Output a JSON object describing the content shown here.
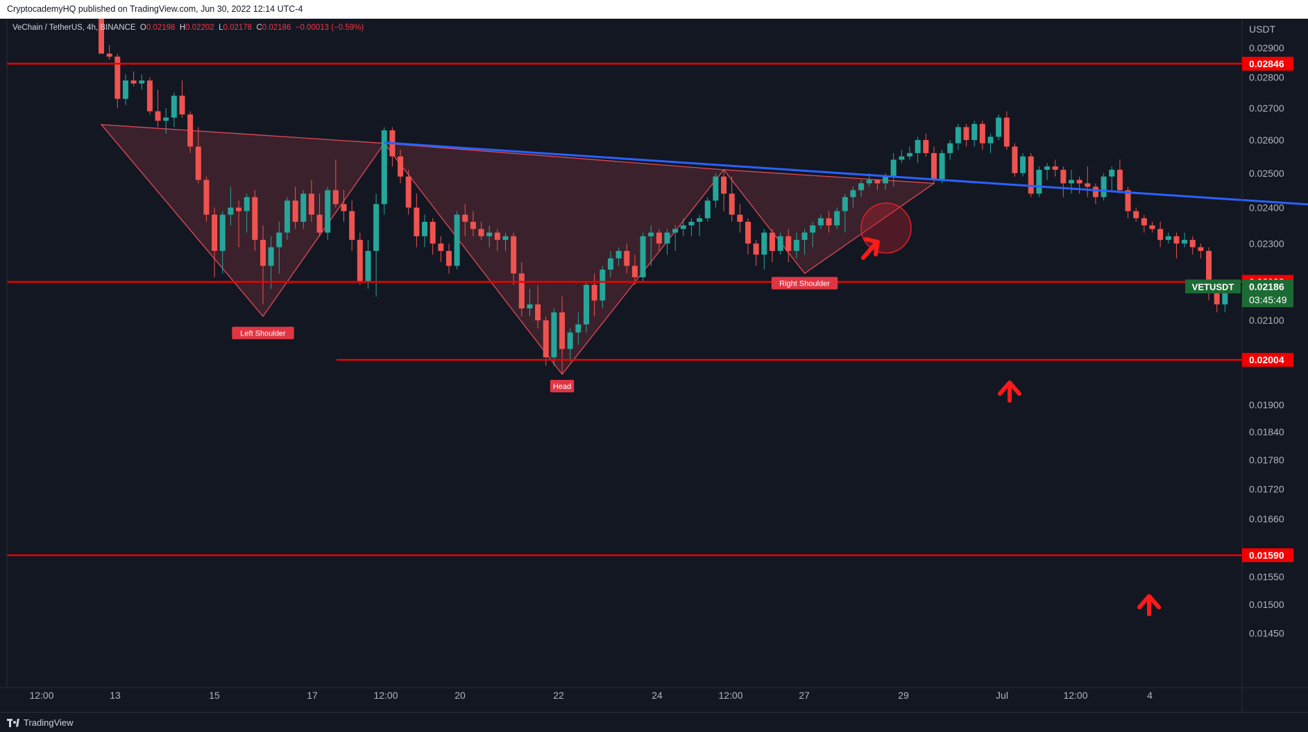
{
  "header": {
    "publisher_line": "CryptocademyHQ published on TradingView.com, Jun 30, 2022 12:14 UTC-4"
  },
  "legend": {
    "symbol": "VeChain / TetherUS, 4h, BINANCE",
    "open_key": "O",
    "open": "0.02198",
    "high_key": "H",
    "high": "0.02202",
    "low_key": "L",
    "low": "0.02178",
    "close_key": "C",
    "close": "0.02186",
    "change": "−0.00013 (−0.59%)"
  },
  "footer": {
    "brand": "TradingView"
  },
  "colors": {
    "background": "#131722",
    "up": "#26a69a",
    "down": "#ef5350",
    "level": "#f20000",
    "trendline": "#2962ff",
    "pattern_fill": "#5c2a33",
    "tag_green": "#1d6b34"
  },
  "chart_data": {
    "type": "candlestick",
    "symbol": "VETUSDT",
    "axis": {
      "currency": "USDT",
      "ylim": [
        0.0141,
        0.0303
      ],
      "scale": "log"
    },
    "price_ticks": [
      "0.02900",
      "0.02800",
      "0.02700",
      "0.02600",
      "0.02500",
      "0.02400",
      "0.02300",
      "0.02100",
      "0.01900",
      "0.01840",
      "0.01780",
      "0.01720",
      "0.01660",
      "0.01550",
      "0.01500",
      "0.01450"
    ],
    "x_ticks": [
      "12:00",
      "13",
      "15",
      "17",
      "12:00",
      "20",
      "22",
      "24",
      "12:00",
      "27",
      "29",
      "Jul",
      "12:00",
      "4"
    ],
    "horizontal_levels": [
      0.02846,
      0.02198,
      0.02004,
      0.0159
    ],
    "level_labels": [
      "0.02846",
      "0.02198",
      "0.02004",
      "0.01590"
    ],
    "last_price": {
      "symbol_tag": "VETUSDT",
      "price": "0.02186",
      "countdown": "03:45:49"
    },
    "pattern": {
      "name": "inverse head and shoulders",
      "labels": [
        "Left Shoulder",
        "Head",
        "Right Shoulder"
      ],
      "points": [
        {
          "bar": 0,
          "price": 0.02648
        },
        {
          "bar": 20,
          "price": 0.0211
        },
        {
          "bar": 35,
          "price": 0.0259
        },
        {
          "bar": 57,
          "price": 0.0197
        },
        {
          "bar": 77,
          "price": 0.0251
        },
        {
          "bar": 87,
          "price": 0.0222
        },
        {
          "bar": 103,
          "price": 0.0247
        }
      ]
    },
    "neckline": {
      "from": {
        "bar": 35,
        "price": 0.02592
      },
      "to": {
        "bar": 184,
        "price": 0.02356
      }
    },
    "candles": [
      [
        0.0305,
        0.0305,
        0.0288,
        0.0288
      ],
      [
        0.0288,
        0.0291,
        0.0286,
        0.0287
      ],
      [
        0.0287,
        0.0288,
        0.027,
        0.0273
      ],
      [
        0.0273,
        0.0281,
        0.0271,
        0.0279
      ],
      [
        0.0279,
        0.0282,
        0.0277,
        0.0278
      ],
      [
        0.0278,
        0.0281,
        0.0276,
        0.0279
      ],
      [
        0.0279,
        0.028,
        0.0268,
        0.0269
      ],
      [
        0.0269,
        0.0276,
        0.0264,
        0.0266
      ],
      [
        0.0266,
        0.027,
        0.0262,
        0.0267
      ],
      [
        0.0267,
        0.0275,
        0.0264,
        0.0274
      ],
      [
        0.0274,
        0.0279,
        0.0267,
        0.0268
      ],
      [
        0.0268,
        0.0269,
        0.0256,
        0.0258
      ],
      [
        0.0258,
        0.0264,
        0.0247,
        0.0248
      ],
      [
        0.0248,
        0.0249,
        0.0236,
        0.0238
      ],
      [
        0.0238,
        0.024,
        0.0221,
        0.0228
      ],
      [
        0.0228,
        0.0239,
        0.0222,
        0.0238
      ],
      [
        0.0238,
        0.0246,
        0.0235,
        0.024
      ],
      [
        0.024,
        0.0242,
        0.0229,
        0.0239
      ],
      [
        0.0239,
        0.0244,
        0.0233,
        0.0243
      ],
      [
        0.0243,
        0.0245,
        0.0228,
        0.0231
      ],
      [
        0.0231,
        0.0235,
        0.0214,
        0.0224
      ],
      [
        0.0224,
        0.0232,
        0.0218,
        0.0229
      ],
      [
        0.0229,
        0.0236,
        0.0222,
        0.0233
      ],
      [
        0.0233,
        0.0243,
        0.0231,
        0.0242
      ],
      [
        0.0242,
        0.0246,
        0.0234,
        0.0236
      ],
      [
        0.0236,
        0.0245,
        0.0234,
        0.0244
      ],
      [
        0.0244,
        0.0248,
        0.0236,
        0.0238
      ],
      [
        0.0238,
        0.0244,
        0.0232,
        0.0233
      ],
      [
        0.0233,
        0.0246,
        0.0231,
        0.0245
      ],
      [
        0.0245,
        0.0254,
        0.024,
        0.0241
      ],
      [
        0.0241,
        0.0245,
        0.0236,
        0.0239
      ],
      [
        0.0239,
        0.0242,
        0.0228,
        0.0231
      ],
      [
        0.0231,
        0.0233,
        0.0219,
        0.022
      ],
      [
        0.022,
        0.0231,
        0.0218,
        0.0228
      ],
      [
        0.0228,
        0.0244,
        0.0216,
        0.0241
      ],
      [
        0.0241,
        0.0264,
        0.0238,
        0.0263
      ],
      [
        0.0263,
        0.0264,
        0.0252,
        0.0255
      ],
      [
        0.0255,
        0.0257,
        0.0247,
        0.0249
      ],
      [
        0.0249,
        0.0251,
        0.0238,
        0.024
      ],
      [
        0.024,
        0.0244,
        0.0229,
        0.0232
      ],
      [
        0.0232,
        0.0238,
        0.0229,
        0.0236
      ],
      [
        0.0236,
        0.0237,
        0.0227,
        0.023
      ],
      [
        0.023,
        0.0232,
        0.0225,
        0.0228
      ],
      [
        0.0228,
        0.023,
        0.0222,
        0.0224
      ],
      [
        0.0224,
        0.0239,
        0.0223,
        0.0238
      ],
      [
        0.0238,
        0.0241,
        0.0232,
        0.0236
      ],
      [
        0.0236,
        0.0239,
        0.0232,
        0.0234
      ],
      [
        0.0234,
        0.0236,
        0.0231,
        0.0232
      ],
      [
        0.0232,
        0.0235,
        0.0229,
        0.0233
      ],
      [
        0.0233,
        0.0234,
        0.0228,
        0.0231
      ],
      [
        0.0231,
        0.0233,
        0.0228,
        0.0232
      ],
      [
        0.0232,
        0.0233,
        0.0219,
        0.0222
      ],
      [
        0.0222,
        0.0225,
        0.0211,
        0.0213
      ],
      [
        0.0213,
        0.0218,
        0.0211,
        0.0214
      ],
      [
        0.0214,
        0.0219,
        0.0208,
        0.021
      ],
      [
        0.021,
        0.0211,
        0.0199,
        0.0201
      ],
      [
        0.0201,
        0.0213,
        0.0199,
        0.0212
      ],
      [
        0.0212,
        0.0216,
        0.0197,
        0.0203
      ],
      [
        0.0203,
        0.0208,
        0.02,
        0.0207
      ],
      [
        0.0207,
        0.0212,
        0.0204,
        0.0209
      ],
      [
        0.0209,
        0.022,
        0.0207,
        0.0219
      ],
      [
        0.0219,
        0.0222,
        0.0211,
        0.0215
      ],
      [
        0.0215,
        0.0224,
        0.0213,
        0.0223
      ],
      [
        0.0223,
        0.0228,
        0.0221,
        0.0226
      ],
      [
        0.0226,
        0.0229,
        0.0224,
        0.0228
      ],
      [
        0.0228,
        0.023,
        0.0222,
        0.0224
      ],
      [
        0.0224,
        0.0227,
        0.0219,
        0.0221
      ],
      [
        0.0221,
        0.0233,
        0.022,
        0.0232
      ],
      [
        0.0232,
        0.0235,
        0.0224,
        0.0233
      ],
      [
        0.0233,
        0.0234,
        0.0228,
        0.023
      ],
      [
        0.023,
        0.0234,
        0.0227,
        0.0233
      ],
      [
        0.0233,
        0.0235,
        0.0228,
        0.0234
      ],
      [
        0.0234,
        0.0237,
        0.0232,
        0.0235
      ],
      [
        0.0235,
        0.0237,
        0.0232,
        0.0236
      ],
      [
        0.0236,
        0.0238,
        0.0232,
        0.0237
      ],
      [
        0.0237,
        0.0243,
        0.0236,
        0.0242
      ],
      [
        0.0242,
        0.025,
        0.024,
        0.0249
      ],
      [
        0.0249,
        0.0251,
        0.0239,
        0.0244
      ],
      [
        0.0244,
        0.0249,
        0.0236,
        0.0238
      ],
      [
        0.0238,
        0.0241,
        0.0233,
        0.0236
      ],
      [
        0.0236,
        0.0237,
        0.0227,
        0.023
      ],
      [
        0.023,
        0.0231,
        0.0224,
        0.0227
      ],
      [
        0.0227,
        0.0234,
        0.0223,
        0.0233
      ],
      [
        0.0233,
        0.0234,
        0.0225,
        0.0228
      ],
      [
        0.0228,
        0.0233,
        0.0227,
        0.0232
      ],
      [
        0.0232,
        0.0234,
        0.0225,
        0.0228
      ],
      [
        0.0228,
        0.0233,
        0.0226,
        0.0231
      ],
      [
        0.0231,
        0.0234,
        0.0227,
        0.0233
      ],
      [
        0.0233,
        0.0236,
        0.0229,
        0.0235
      ],
      [
        0.0235,
        0.0238,
        0.0234,
        0.0237
      ],
      [
        0.0237,
        0.0239,
        0.0233,
        0.0235
      ],
      [
        0.0235,
        0.024,
        0.0234,
        0.0239
      ],
      [
        0.0239,
        0.0244,
        0.0233,
        0.0243
      ],
      [
        0.0243,
        0.0246,
        0.024,
        0.0245
      ],
      [
        0.0245,
        0.0248,
        0.0243,
        0.0247
      ],
      [
        0.0247,
        0.025,
        0.0246,
        0.0248
      ],
      [
        0.0248,
        0.0248,
        0.0245,
        0.0247
      ],
      [
        0.0247,
        0.025,
        0.0245,
        0.0249
      ],
      [
        0.0249,
        0.0256,
        0.0246,
        0.0254
      ],
      [
        0.0254,
        0.0257,
        0.0253,
        0.0255
      ],
      [
        0.0255,
        0.0258,
        0.0254,
        0.0256
      ],
      [
        0.0256,
        0.0261,
        0.0253,
        0.026
      ],
      [
        0.026,
        0.0262,
        0.0255,
        0.0256
      ],
      [
        0.0256,
        0.0258,
        0.0247,
        0.0248
      ],
      [
        0.0248,
        0.0257,
        0.0247,
        0.0256
      ],
      [
        0.0256,
        0.026,
        0.0254,
        0.0259
      ],
      [
        0.0259,
        0.0265,
        0.0257,
        0.0264
      ],
      [
        0.0264,
        0.0265,
        0.0258,
        0.026
      ],
      [
        0.026,
        0.0266,
        0.0258,
        0.0265
      ],
      [
        0.0265,
        0.0266,
        0.0257,
        0.0259
      ],
      [
        0.0259,
        0.0262,
        0.0256,
        0.0261
      ],
      [
        0.0261,
        0.0268,
        0.026,
        0.0267
      ],
      [
        0.0267,
        0.0269,
        0.0257,
        0.0258
      ],
      [
        0.0258,
        0.0259,
        0.0249,
        0.025
      ],
      [
        0.025,
        0.0256,
        0.0249,
        0.0255
      ],
      [
        0.0255,
        0.0256,
        0.0243,
        0.0244
      ],
      [
        0.0244,
        0.0252,
        0.0243,
        0.0251
      ],
      [
        0.0251,
        0.0253,
        0.0248,
        0.0252
      ],
      [
        0.0252,
        0.0254,
        0.0249,
        0.0251
      ],
      [
        0.0251,
        0.0252,
        0.0243,
        0.0247
      ],
      [
        0.0247,
        0.0251,
        0.0244,
        0.0248
      ],
      [
        0.0248,
        0.0249,
        0.0244,
        0.0247
      ],
      [
        0.0247,
        0.0252,
        0.0243,
        0.0246
      ],
      [
        0.0246,
        0.0247,
        0.0241,
        0.0243
      ],
      [
        0.0243,
        0.025,
        0.0242,
        0.0249
      ],
      [
        0.0249,
        0.0252,
        0.0245,
        0.0251
      ],
      [
        0.0251,
        0.0254,
        0.0244,
        0.0245
      ],
      [
        0.0245,
        0.0246,
        0.0237,
        0.0239
      ],
      [
        0.0239,
        0.024,
        0.0236,
        0.0237
      ],
      [
        0.0237,
        0.0238,
        0.0233,
        0.0235
      ],
      [
        0.0235,
        0.0236,
        0.0233,
        0.0234
      ],
      [
        0.0234,
        0.0236,
        0.0229,
        0.0231
      ],
      [
        0.0231,
        0.0233,
        0.023,
        0.0232
      ],
      [
        0.0232,
        0.0233,
        0.0226,
        0.023
      ],
      [
        0.023,
        0.0233,
        0.0229,
        0.0231
      ],
      [
        0.0231,
        0.0232,
        0.0227,
        0.0229
      ],
      [
        0.0229,
        0.023,
        0.0226,
        0.0228
      ],
      [
        0.0228,
        0.0229,
        0.0215,
        0.0217
      ],
      [
        0.0217,
        0.0219,
        0.0212,
        0.0214
      ],
      [
        0.0214,
        0.0219,
        0.0212,
        0.0218
      ],
      [
        0.0218,
        0.022,
        0.0217,
        0.0217
      ]
    ]
  }
}
